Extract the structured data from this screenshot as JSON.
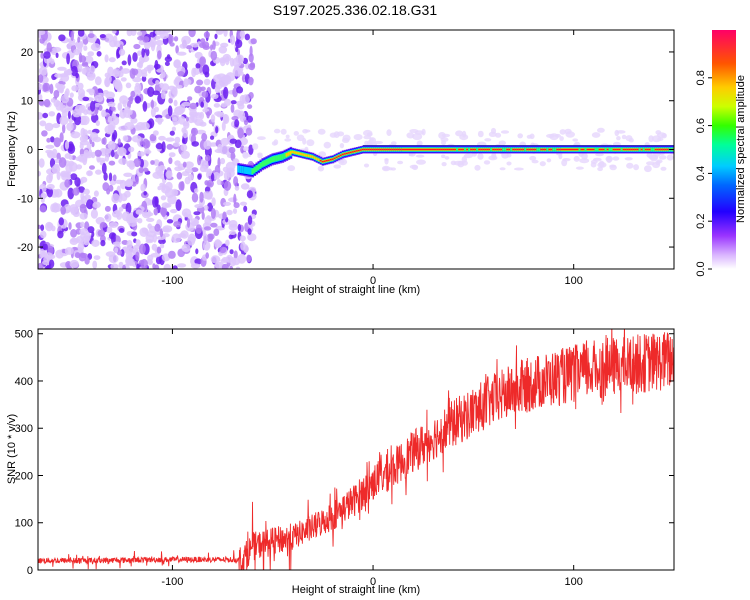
{
  "figure": {
    "title": "S197.2025.336.02.18.G31"
  },
  "chart_data": [
    {
      "type": "heatmap",
      "name": "spectrogram",
      "xlabel": "Height of straight line (km)",
      "ylabel": "Frequency (Hz)",
      "xlim": [
        -167,
        150
      ],
      "ylim": [
        -24.5,
        24.5
      ],
      "x_ticks": [
        -100,
        0,
        100
      ],
      "y_ticks": [
        -20,
        -10,
        0,
        10,
        20
      ],
      "x_tick_labels": [
        "-100",
        "0",
        "100"
      ],
      "y_tick_labels": [
        "-20",
        "-10",
        "0",
        "10",
        "20"
      ],
      "colorbar": {
        "label": "Normalized spectral amplitude",
        "range": [
          0,
          1
        ],
        "ticks": [
          0.0,
          0.2,
          0.4,
          0.6,
          0.8
        ],
        "tick_labels": [
          "0.0",
          "0.2",
          "0.4",
          "0.6",
          "0.8"
        ],
        "colormap": [
          "#ffffff",
          "#cc99ff",
          "#6600ff",
          "#0000ff",
          "#00ccff",
          "#00ff66",
          "#ccff00",
          "#ffcc00",
          "#ff3300",
          "#ff0066"
        ]
      },
      "noise_region_x": [
        -167,
        -65
      ],
      "signal_track": {
        "x": [
          -67,
          -60,
          -55,
          -50,
          -45,
          -40,
          -35,
          -30,
          -25,
          -20,
          -15,
          -10,
          -5,
          0,
          10,
          20,
          40,
          60,
          80,
          100,
          120,
          150
        ],
        "freq_hz": [
          -4,
          -4.5,
          -3,
          -2,
          -1.5,
          -0.5,
          -1,
          -1.5,
          -2.5,
          -2,
          -1,
          -0.5,
          0,
          0,
          0,
          0,
          0,
          0,
          0,
          0,
          0,
          0
        ],
        "amplitude": [
          0.35,
          0.45,
          0.5,
          0.55,
          0.6,
          0.65,
          0.7,
          0.75,
          0.8,
          0.85,
          0.85,
          0.9,
          0.95,
          0.95,
          0.95,
          0.95,
          0.95,
          0.9,
          0.9,
          0.9,
          0.9,
          0.85
        ]
      }
    },
    {
      "type": "line",
      "name": "snr",
      "xlabel": "Height of straight line (km)",
      "ylabel": "SNR (10 * v/v)",
      "xlim": [
        -167,
        150
      ],
      "ylim": [
        0,
        510
      ],
      "x_ticks": [
        -100,
        0,
        100
      ],
      "y_ticks": [
        0,
        100,
        200,
        300,
        400,
        500
      ],
      "x_tick_labels": [
        "-100",
        "0",
        "100"
      ],
      "y_tick_labels": [
        "0",
        "100",
        "200",
        "300",
        "400",
        "500"
      ],
      "color": "#ee2a2a",
      "series": [
        {
          "name": "SNR",
          "x": [
            -167,
            -140,
            -110,
            -80,
            -65,
            -60,
            -50,
            -40,
            -30,
            -20,
            -10,
            0,
            10,
            20,
            30,
            40,
            50,
            60,
            70,
            80,
            90,
            100,
            110,
            120,
            130,
            140,
            150
          ],
          "values": [
            20,
            20,
            22,
            22,
            22,
            50,
            60,
            70,
            90,
            115,
            145,
            185,
            215,
            250,
            280,
            310,
            335,
            360,
            380,
            395,
            405,
            415,
            425,
            430,
            435,
            440,
            445
          ]
        }
      ]
    }
  ]
}
